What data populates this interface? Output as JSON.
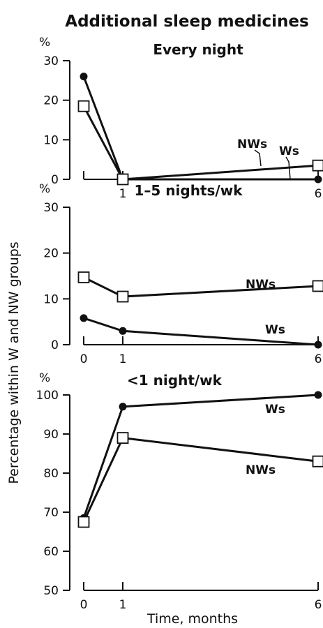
{
  "title": "Additional sleep medicines",
  "ylabel": "Percentage within W and NW groups",
  "xlabel": "Time, months",
  "unit": "%",
  "chart_data": [
    {
      "type": "line",
      "title": "Every night",
      "x": [
        0,
        1,
        6
      ],
      "ylim": [
        0,
        30
      ],
      "yticks": [
        0,
        10,
        20,
        30
      ],
      "xticks_shown": [
        "1",
        "6"
      ],
      "series": [
        {
          "name": "Ws",
          "marker": "filled-circle",
          "values": [
            26,
            0,
            0
          ]
        },
        {
          "name": "NWs",
          "marker": "open-square",
          "values": [
            18.5,
            0,
            3.5
          ]
        }
      ]
    },
    {
      "type": "line",
      "title": "1–5 nights/wk",
      "x": [
        0,
        1,
        6
      ],
      "ylim": [
        0,
        30
      ],
      "yticks": [
        0,
        10,
        20,
        30
      ],
      "xticks_shown": [
        "0",
        "1",
        "6"
      ],
      "series": [
        {
          "name": "NWs",
          "marker": "open-square",
          "values": [
            14.7,
            10.5,
            12.8
          ]
        },
        {
          "name": "Ws",
          "marker": "filled-circle",
          "values": [
            5.8,
            3,
            0
          ]
        }
      ]
    },
    {
      "type": "line",
      "title": "<1 night/wk",
      "x": [
        0,
        1,
        6
      ],
      "ylim": [
        50,
        100
      ],
      "yticks": [
        50,
        60,
        70,
        80,
        90,
        100
      ],
      "xticks_shown": [
        "0",
        "1",
        "6"
      ],
      "series": [
        {
          "name": "Ws",
          "marker": "filled-circle",
          "values": [
            68.5,
            97,
            100
          ]
        },
        {
          "name": "NWs",
          "marker": "open-square",
          "values": [
            67.5,
            89,
            83
          ]
        }
      ]
    }
  ]
}
